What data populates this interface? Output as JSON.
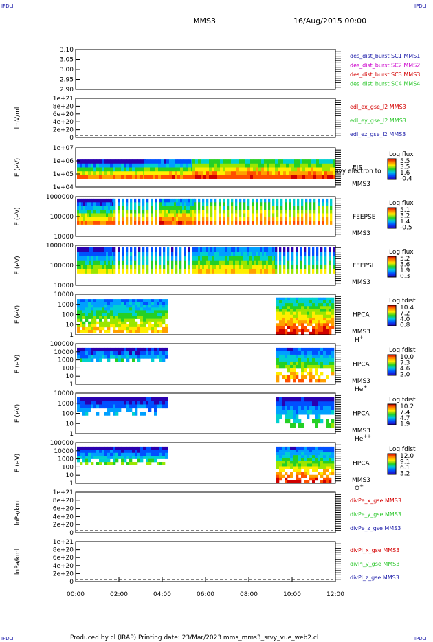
{
  "header": {
    "corner_tl": "IPDLI",
    "corner_tr": "IPDLI",
    "corner_bl": "IPDLI",
    "corner_br": "IPDLI",
    "spacecraft": "MMS3",
    "datetime": "16/Aug/2015 00:00"
  },
  "footer": {
    "text": "Produced by cl (IRAP)   Printing date: 23/Mar/2023   mms_mms3_srvy_vue_web2.cl"
  },
  "colors": {
    "blue": "#1a1aa8",
    "magenta": "#cc00cc",
    "red": "#d40000",
    "green": "#2ec82e"
  },
  "chart_data": [
    {
      "type": "line",
      "ylim": [
        2.9,
        3.1
      ],
      "yticks": [
        "3.10",
        "3.05",
        "3.00",
        "2.95",
        "2.90"
      ],
      "ylabel": "",
      "series": [
        {
          "name": "des_dist_burst SC1 MMS1",
          "color": "#1a1aa8",
          "values": []
        },
        {
          "name": "des_dist_burst SC2 MMS2",
          "color": "#cc00cc",
          "values": []
        },
        {
          "name": "des_dist_burst SC3 MMS3",
          "color": "#d40000",
          "values": []
        },
        {
          "name": "des_dist_burst SC4 MMS4",
          "color": "#2ec82e",
          "values": []
        }
      ]
    },
    {
      "type": "line",
      "ylim": [
        0,
        1e+21
      ],
      "yticks": [
        "1e+21",
        "8e+20",
        "6e+20",
        "4e+20",
        "2e+20",
        "0"
      ],
      "ylabel": "lmV/ml",
      "zero_line": true,
      "series": [
        {
          "name": "edl_ex_gse_l2 MMS3",
          "color": "#d40000",
          "values": []
        },
        {
          "name": "edl_ey_gse_l2 MMS3",
          "color": "#2ec82e",
          "values": []
        },
        {
          "name": "edl_ez_gse_l2 MMS3",
          "color": "#1a1aa8",
          "values": []
        }
      ]
    },
    {
      "type": "heatmap",
      "ylabel": "E (eV)",
      "yticks": [
        "1e+07",
        "1e+06",
        "1e+05",
        "1e+04"
      ],
      "labels": [
        "EIS",
        "MMS3"
      ],
      "overlay_text": "avy electron to",
      "colorbar": {
        "title": "Log flux",
        "ticks": [
          "5.5",
          "3.5",
          "1.6",
          "-0.4"
        ]
      }
    },
    {
      "type": "heatmap",
      "ylabel": "E (eV)",
      "yticks": [
        "1000000",
        "100000",
        "10000"
      ],
      "labels": [
        "FEEPSE",
        "MMS3"
      ],
      "colorbar": {
        "title": "Log flux",
        "ticks": [
          "5.1",
          "3.2",
          "1.4",
          "-0.5"
        ]
      }
    },
    {
      "type": "heatmap",
      "ylabel": "E (eV)",
      "yticks": [
        "1000000",
        "100000",
        "10000"
      ],
      "labels": [
        "FEEPSI",
        "MMS3"
      ],
      "colorbar": {
        "title": "Log flux",
        "ticks": [
          "5.2",
          "3.6",
          "1.9",
          "0.3"
        ]
      }
    },
    {
      "type": "heatmap",
      "ylabel": "E (eV)",
      "yticks": [
        "10000",
        "1000",
        "100",
        "10",
        "1"
      ],
      "labels": [
        "HPCA",
        "MMS3"
      ],
      "species": "H",
      "species_sup": "+",
      "colorbar": {
        "title": "Log fdist",
        "ticks": [
          "10.4",
          "7.2",
          "4.0",
          "0.8"
        ]
      }
    },
    {
      "type": "heatmap",
      "ylabel": "E (eV)",
      "yticks": [
        "100000",
        "10000",
        "1000",
        "100",
        "10",
        "1"
      ],
      "labels": [
        "HPCA",
        "MMS3"
      ],
      "species": "He",
      "species_sup": "+",
      "colorbar": {
        "title": "Log fdist",
        "ticks": [
          "10.0",
          "7.3",
          "4.6",
          "2.0"
        ]
      }
    },
    {
      "type": "heatmap",
      "ylabel": "E (eV)",
      "yticks": [
        "10000",
        "1000",
        "100",
        "10",
        "1"
      ],
      "labels": [
        "HPCA",
        "MMS3"
      ],
      "species": "He",
      "species_sup": "++",
      "colorbar": {
        "title": "Log fdist",
        "ticks": [
          "10.2",
          "7.4",
          "4.7",
          "1.9"
        ]
      }
    },
    {
      "type": "heatmap",
      "ylabel": "E (eV)",
      "yticks": [
        "100000",
        "10000",
        "1000",
        "100",
        "10",
        "1"
      ],
      "labels": [
        "HPCA",
        "MMS3"
      ],
      "species": "O",
      "species_sup": "+",
      "colorbar": {
        "title": "Log fdist",
        "ticks": [
          "12.0",
          "9.1",
          "6.1",
          "3.2"
        ]
      }
    },
    {
      "type": "line",
      "ylim": [
        0,
        1e+21
      ],
      "yticks": [
        "1e+21",
        "8e+20",
        "6e+20",
        "4e+20",
        "2e+20",
        "0"
      ],
      "ylabel": "lnPa/kml",
      "zero_line": true,
      "series": [
        {
          "name": "divPe_x_gse MMS3",
          "color": "#d40000",
          "values": []
        },
        {
          "name": "divPe_y_gse MMS3",
          "color": "#2ec82e",
          "values": []
        },
        {
          "name": "divPe_z_gse MMS3",
          "color": "#1a1aa8",
          "values": []
        }
      ]
    },
    {
      "type": "line",
      "ylim": [
        0,
        1e+21
      ],
      "yticks": [
        "1e+21",
        "8e+20",
        "6e+20",
        "4e+20",
        "2e+20",
        "0"
      ],
      "ylabel": "lnPa/kml",
      "zero_line": true,
      "series": [
        {
          "name": "divPi_x_gse MMS3",
          "color": "#d40000",
          "values": []
        },
        {
          "name": "divPi_y_gse MMS3",
          "color": "#2ec82e",
          "values": []
        },
        {
          "name": "divPi_z_gse MMS3",
          "color": "#1a1aa8",
          "values": []
        }
      ]
    }
  ],
  "xaxis": {
    "ticks": [
      "00:00",
      "02:00",
      "04:00",
      "06:00",
      "08:00",
      "10:00",
      "12:00"
    ],
    "range_hours": [
      0,
      12
    ]
  }
}
